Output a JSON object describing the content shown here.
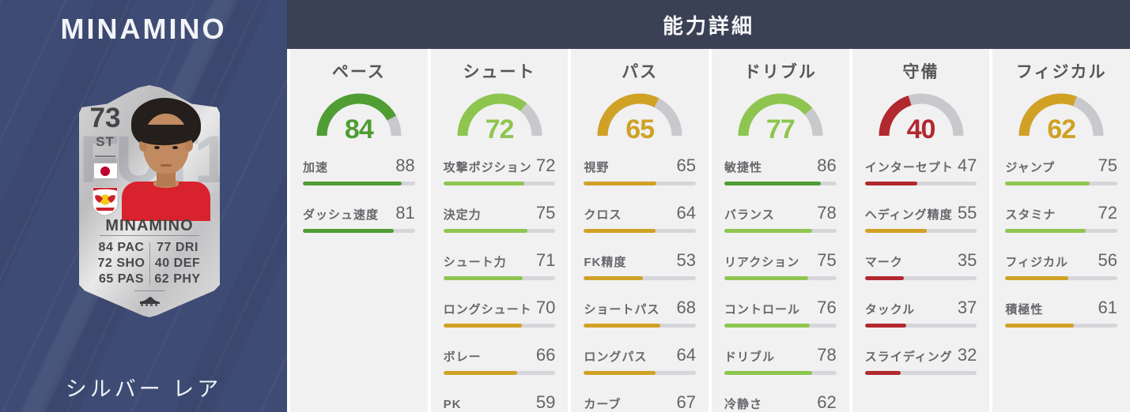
{
  "header": {
    "title": "能力詳細"
  },
  "left_panel": {
    "title": "MINAMINO",
    "rarity_label": "シルバー レア",
    "card": {
      "rating": "73",
      "position": "ST",
      "name": "MINAMINO",
      "watermark": "FUT19",
      "icons": {
        "flag": "japan-flag-icon",
        "badge": "club-crest-icon",
        "boot": "boot-icon"
      },
      "stats": [
        {
          "value": "84",
          "label": "PAC"
        },
        {
          "value": "77",
          "label": "DRI"
        },
        {
          "value": "72",
          "label": "SHO"
        },
        {
          "value": "40",
          "label": "DEF"
        },
        {
          "value": "65",
          "label": "PAS"
        },
        {
          "value": "62",
          "label": "PHY"
        }
      ]
    }
  },
  "colors": {
    "panel_blue": "#3e4b74",
    "header_navy": "#3a4154",
    "column_bg": "#f1f1f2",
    "gauge_track": "#c9c9cd",
    "bar_track": "#d6d6da",
    "tiers": {
      "green": "#4f9d33",
      "lightgreen": "#8ec54f",
      "gold": "#d0a125",
      "red": "#b2282f"
    }
  },
  "categories": [
    {
      "id": "pace",
      "label": "ペース",
      "overall": 84,
      "tier": "green",
      "stats": [
        {
          "label": "加速",
          "value": 88,
          "tier": "green"
        },
        {
          "label": "ダッシュ速度",
          "value": 81,
          "tier": "green"
        }
      ]
    },
    {
      "id": "shooting",
      "label": "シュート",
      "overall": 72,
      "tier": "lightgreen",
      "stats": [
        {
          "label": "攻撃ポジション",
          "value": 72,
          "tier": "lightgreen"
        },
        {
          "label": "決定力",
          "value": 75,
          "tier": "lightgreen"
        },
        {
          "label": "シュート力",
          "value": 71,
          "tier": "lightgreen"
        },
        {
          "label": "ロングシュート",
          "value": 70,
          "tier": "gold"
        },
        {
          "label": "ボレー",
          "value": 66,
          "tier": "gold"
        },
        {
          "label": "PK",
          "value": 59,
          "tier": "gold"
        }
      ]
    },
    {
      "id": "passing",
      "label": "パス",
      "overall": 65,
      "tier": "gold",
      "stats": [
        {
          "label": "視野",
          "value": 65,
          "tier": "gold"
        },
        {
          "label": "クロス",
          "value": 64,
          "tier": "gold"
        },
        {
          "label": "FK精度",
          "value": 53,
          "tier": "gold"
        },
        {
          "label": "ショートパス",
          "value": 68,
          "tier": "gold"
        },
        {
          "label": "ロングパス",
          "value": 64,
          "tier": "gold"
        },
        {
          "label": "カーブ",
          "value": 67,
          "tier": "gold"
        }
      ]
    },
    {
      "id": "dribbling",
      "label": "ドリブル",
      "overall": 77,
      "tier": "lightgreen",
      "stats": [
        {
          "label": "敏捷性",
          "value": 86,
          "tier": "green"
        },
        {
          "label": "バランス",
          "value": 78,
          "tier": "lightgreen"
        },
        {
          "label": "リアクション",
          "value": 75,
          "tier": "lightgreen"
        },
        {
          "label": "コントロール",
          "value": 76,
          "tier": "lightgreen"
        },
        {
          "label": "ドリブル",
          "value": 78,
          "tier": "lightgreen"
        },
        {
          "label": "冷静さ",
          "value": 62,
          "tier": "gold"
        }
      ]
    },
    {
      "id": "defending",
      "label": "守備",
      "overall": 40,
      "tier": "red",
      "stats": [
        {
          "label": "インターセプト",
          "value": 47,
          "tier": "red"
        },
        {
          "label": "ヘディング精度",
          "value": 55,
          "tier": "gold"
        },
        {
          "label": "マーク",
          "value": 35,
          "tier": "red"
        },
        {
          "label": "タックル",
          "value": 37,
          "tier": "red"
        },
        {
          "label": "スライディング",
          "value": 32,
          "tier": "red"
        }
      ]
    },
    {
      "id": "physical",
      "label": "フィジカル",
      "overall": 62,
      "tier": "gold",
      "stats": [
        {
          "label": "ジャンプ",
          "value": 75,
          "tier": "lightgreen"
        },
        {
          "label": "スタミナ",
          "value": 72,
          "tier": "lightgreen"
        },
        {
          "label": "フィジカル",
          "value": 56,
          "tier": "gold"
        },
        {
          "label": "積極性",
          "value": 61,
          "tier": "gold"
        }
      ]
    }
  ]
}
